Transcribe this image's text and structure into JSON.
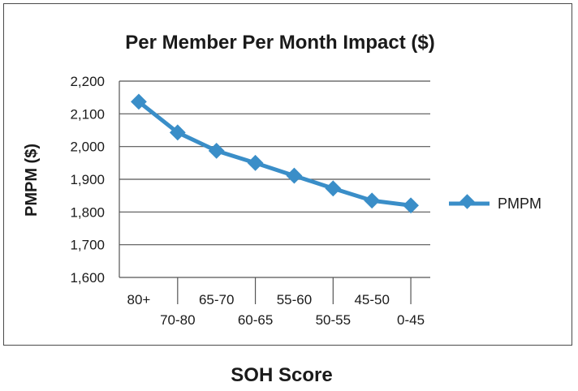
{
  "chart_data": {
    "type": "line",
    "title": "Per Member Per Month Impact ($)",
    "xlabel": "SOH Score",
    "ylabel": "PMPM ($)",
    "categories": [
      "80+",
      "70-80",
      "65-70",
      "60-65",
      "55-60",
      "50-55",
      "45-50",
      "0-45"
    ],
    "ylim": [
      1600,
      2200
    ],
    "yticks": [
      "1,600",
      "1,700",
      "1,800",
      "1,900",
      "2,000",
      "2,100",
      "2,200"
    ],
    "series": [
      {
        "name": "PMPM",
        "values": [
          2137,
          2043,
          1987,
          1950,
          1911,
          1872,
          1835,
          1820
        ]
      }
    ],
    "grid": true,
    "legend_position": "right",
    "colors": {
      "series": "#3a8ec8",
      "grid": "#555555",
      "axis": "#555555"
    }
  }
}
